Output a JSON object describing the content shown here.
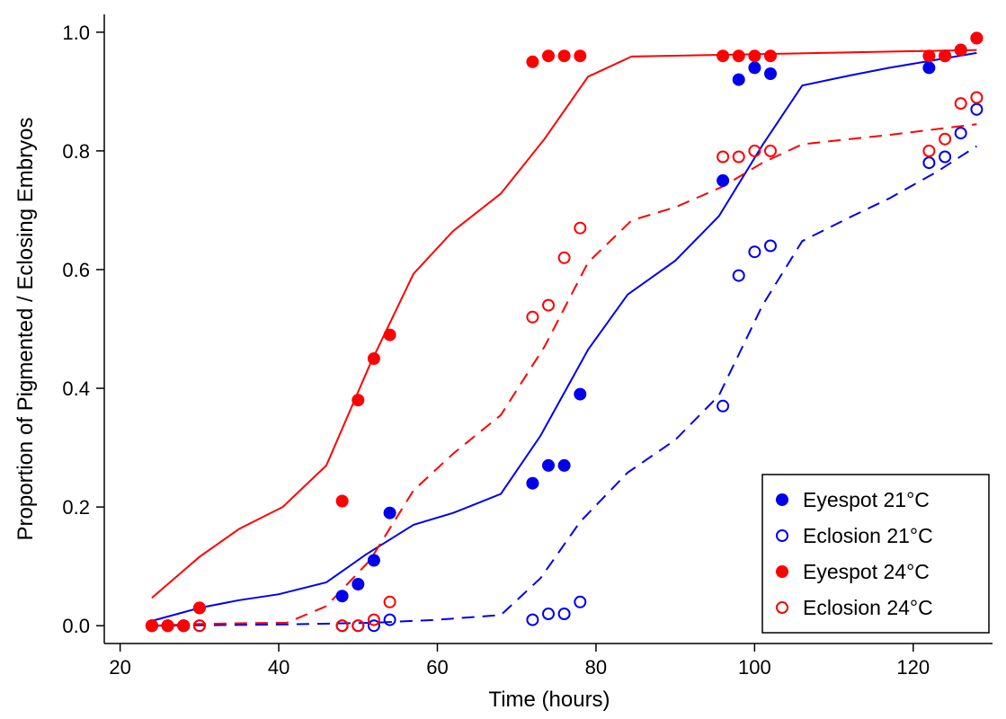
{
  "chart_data": {
    "type": "scatter",
    "title": "",
    "xlabel": "Time (hours)",
    "ylabel": "Proportion of Pigmented / Eclosing Embryos",
    "xlim": [
      18,
      130
    ],
    "ylim": [
      -0.03,
      1.03
    ],
    "xticks": [
      20,
      40,
      60,
      80,
      100,
      120
    ],
    "yticks": [
      0.0,
      0.2,
      0.4,
      0.6,
      0.8,
      1.0
    ],
    "xtick_labels": [
      "20",
      "40",
      "60",
      "80",
      "100",
      "120"
    ],
    "ytick_labels": [
      "0.0",
      "0.2",
      "0.4",
      "0.6",
      "0.8",
      "1.0"
    ],
    "grid": false,
    "legend_position": "bottom-right",
    "series": [
      {
        "name": "Eyespot 21°C",
        "color": "#0000ee",
        "marker": "filled-circle",
        "points": [
          [
            24,
            0
          ],
          [
            26,
            0
          ],
          [
            28,
            0
          ],
          [
            30,
            0.03
          ],
          [
            48,
            0.05
          ],
          [
            50,
            0.07
          ],
          [
            52,
            0.11
          ],
          [
            54,
            0.19
          ],
          [
            72,
            0.24
          ],
          [
            74,
            0.27
          ],
          [
            76,
            0.27
          ],
          [
            78,
            0.39
          ],
          [
            96,
            0.75
          ],
          [
            98,
            0.92
          ],
          [
            100,
            0.94
          ],
          [
            102,
            0.93
          ],
          [
            122,
            0.94
          ],
          [
            124,
            0.96
          ],
          [
            126,
            0.97
          ],
          [
            128,
            0.99
          ]
        ],
        "fit_style": "solid",
        "fit": [
          [
            24,
            0.008
          ],
          [
            30,
            0.03
          ],
          [
            35,
            0.043
          ],
          [
            40,
            0.053
          ],
          [
            46,
            0.073
          ],
          [
            51,
            0.12
          ],
          [
            57,
            0.17
          ],
          [
            62,
            0.19
          ],
          [
            68,
            0.222
          ],
          [
            73,
            0.32
          ],
          [
            79,
            0.465
          ],
          [
            84,
            0.558
          ],
          [
            90,
            0.615
          ],
          [
            95.5,
            0.69
          ],
          [
            101,
            0.81
          ],
          [
            106,
            0.91
          ],
          [
            112,
            0.927
          ],
          [
            117,
            0.94
          ],
          [
            128,
            0.965
          ]
        ]
      },
      {
        "name": "Eclosion 21°C",
        "color": "#0000ee",
        "marker": "open-circle",
        "points": [
          [
            24,
            0
          ],
          [
            26,
            0
          ],
          [
            28,
            0
          ],
          [
            30,
            0
          ],
          [
            48,
            0
          ],
          [
            50,
            0
          ],
          [
            52,
            0
          ],
          [
            54,
            0.01
          ],
          [
            72,
            0.01
          ],
          [
            74,
            0.02
          ],
          [
            76,
            0.02
          ],
          [
            78,
            0.04
          ],
          [
            96,
            0.37
          ],
          [
            98,
            0.59
          ],
          [
            100,
            0.63
          ],
          [
            102,
            0.64
          ],
          [
            122,
            0.78
          ],
          [
            124,
            0.79
          ],
          [
            126,
            0.83
          ],
          [
            128,
            0.87
          ]
        ],
        "fit_style": "dashed",
        "fit": [
          [
            24,
            0
          ],
          [
            40,
            0.002
          ],
          [
            52,
            0.005
          ],
          [
            60,
            0.01
          ],
          [
            68,
            0.018
          ],
          [
            73,
            0.08
          ],
          [
            78,
            0.175
          ],
          [
            84,
            0.258
          ],
          [
            90,
            0.313
          ],
          [
            95.5,
            0.388
          ],
          [
            101,
            0.54
          ],
          [
            106,
            0.648
          ],
          [
            112,
            0.688
          ],
          [
            117,
            0.72
          ],
          [
            123,
            0.765
          ],
          [
            128,
            0.808
          ]
        ]
      },
      {
        "name": "Eyespot 24°C",
        "color": "#ff0000",
        "marker": "filled-circle",
        "points": [
          [
            24,
            0
          ],
          [
            26,
            0
          ],
          [
            28,
            0
          ],
          [
            30,
            0.03
          ],
          [
            48,
            0.21
          ],
          [
            50,
            0.38
          ],
          [
            52,
            0.45
          ],
          [
            54,
            0.49
          ],
          [
            72,
            0.95
          ],
          [
            74,
            0.96
          ],
          [
            76,
            0.96
          ],
          [
            78,
            0.96
          ],
          [
            96,
            0.96
          ],
          [
            98,
            0.96
          ],
          [
            100,
            0.96
          ],
          [
            102,
            0.96
          ],
          [
            122,
            0.96
          ],
          [
            124,
            0.96
          ],
          [
            126,
            0.97
          ],
          [
            128,
            0.99
          ]
        ],
        "fit_style": "solid",
        "fit": [
          [
            24,
            0.047
          ],
          [
            30,
            0.116
          ],
          [
            35,
            0.163
          ],
          [
            40.5,
            0.2
          ],
          [
            46,
            0.27
          ],
          [
            51.5,
            0.44
          ],
          [
            57,
            0.593
          ],
          [
            62,
            0.665
          ],
          [
            68,
            0.728
          ],
          [
            73.5,
            0.82
          ],
          [
            79,
            0.925
          ],
          [
            84.5,
            0.959
          ],
          [
            128,
            0.97
          ]
        ]
      },
      {
        "name": "Eclosion 24°C",
        "color": "#ff0000",
        "marker": "open-circle",
        "points": [
          [
            24,
            0
          ],
          [
            26,
            0
          ],
          [
            28,
            0
          ],
          [
            30,
            0
          ],
          [
            48,
            0
          ],
          [
            50,
            0
          ],
          [
            52,
            0.01
          ],
          [
            54,
            0.04
          ],
          [
            72,
            0.52
          ],
          [
            74,
            0.54
          ],
          [
            76,
            0.62
          ],
          [
            78,
            0.67
          ],
          [
            96,
            0.79
          ],
          [
            98,
            0.79
          ],
          [
            100,
            0.8
          ],
          [
            102,
            0.8
          ],
          [
            122,
            0.8
          ],
          [
            124,
            0.82
          ],
          [
            126,
            0.88
          ],
          [
            128,
            0.89
          ]
        ],
        "fit_style": "dashed",
        "fit": [
          [
            24,
            0
          ],
          [
            30,
            0.003
          ],
          [
            35,
            0.004
          ],
          [
            41,
            0.005
          ],
          [
            46,
            0.033
          ],
          [
            51.5,
            0.11
          ],
          [
            57,
            0.228
          ],
          [
            62,
            0.29
          ],
          [
            68,
            0.355
          ],
          [
            73.5,
            0.47
          ],
          [
            79,
            0.612
          ],
          [
            84.5,
            0.683
          ],
          [
            90,
            0.705
          ],
          [
            96,
            0.74
          ],
          [
            101,
            0.78
          ],
          [
            106,
            0.811
          ],
          [
            112,
            0.82
          ],
          [
            117,
            0.827
          ],
          [
            128,
            0.845
          ]
        ]
      }
    ]
  }
}
